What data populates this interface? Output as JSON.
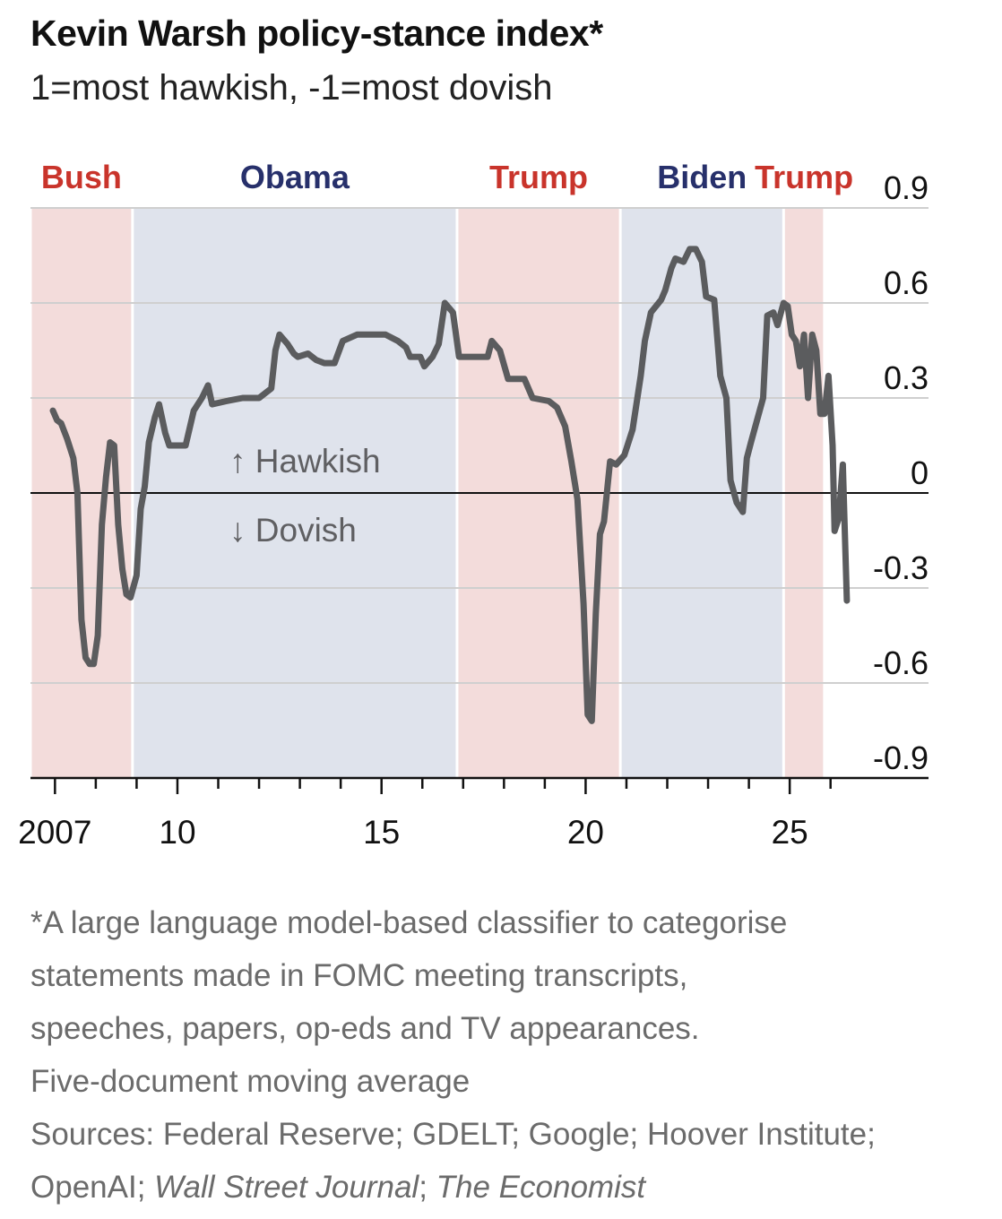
{
  "header": {
    "title": "Kevin Warsh policy-stance index*",
    "subtitle": "1=most hawkish, -1=most dovish"
  },
  "chart_data": {
    "type": "line",
    "title": "Kevin Warsh policy-stance index*",
    "subtitle": "1=most hawkish, -1=most dovish",
    "ylim": [
      -0.9,
      0.9
    ],
    "yticks": [
      0.9,
      0.6,
      0.3,
      0,
      -0.3,
      -0.6,
      -0.9
    ],
    "ytick_labels": [
      "0.9",
      "0.6",
      "0.3",
      "0",
      "-0.3",
      "-0.6",
      "-0.9"
    ],
    "xlim": [
      2006.4,
      2028.4
    ],
    "xtick_labels": [
      {
        "value": 2007,
        "label": "2007"
      },
      {
        "value": 2010,
        "label": "10"
      },
      {
        "value": 2015,
        "label": "15"
      },
      {
        "value": 2020,
        "label": "20"
      },
      {
        "value": 2025,
        "label": "25"
      }
    ],
    "minor_ticks": [
      2007,
      2008,
      2009,
      2010,
      2011,
      2012,
      2013,
      2014,
      2015,
      2016,
      2017,
      2018,
      2019,
      2020,
      2021,
      2022,
      2023,
      2024,
      2025,
      2026
    ],
    "presidencies": [
      {
        "label": "Bush",
        "party": "R",
        "start": 2006.4,
        "end": 2008.9
      },
      {
        "label": "Obama",
        "party": "D",
        "start": 2008.9,
        "end": 2016.85
      },
      {
        "label": "Trump",
        "party": "R",
        "start": 2016.85,
        "end": 2020.85
      },
      {
        "label": "Biden",
        "party": "D",
        "start": 2020.85,
        "end": 2024.85
      },
      {
        "label": "Trump",
        "party": "R",
        "start": 2024.85,
        "end": 2025.85
      }
    ],
    "annotations": {
      "hawkish": "↑ Hawkish",
      "dovish": "↓ Dovish"
    },
    "colors": {
      "republican": "#f3dcdb",
      "democrat": "#dfe3ec",
      "rep_text": "#c9342b",
      "dem_text": "#27306b",
      "line": "#5b5c5e"
    },
    "series": [
      {
        "name": "Policy-stance index",
        "points": [
          [
            2006.95,
            0.26
          ],
          [
            2007.05,
            0.23
          ],
          [
            2007.15,
            0.22
          ],
          [
            2007.3,
            0.17
          ],
          [
            2007.45,
            0.11
          ],
          [
            2007.55,
            0.0
          ],
          [
            2007.65,
            -0.4
          ],
          [
            2007.75,
            -0.52
          ],
          [
            2007.85,
            -0.54
          ],
          [
            2007.95,
            -0.54
          ],
          [
            2008.05,
            -0.45
          ],
          [
            2008.15,
            -0.1
          ],
          [
            2008.25,
            0.05
          ],
          [
            2008.35,
            0.16
          ],
          [
            2008.45,
            0.15
          ],
          [
            2008.55,
            -0.1
          ],
          [
            2008.65,
            -0.24
          ],
          [
            2008.75,
            -0.32
          ],
          [
            2008.85,
            -0.33
          ],
          [
            2009.0,
            -0.26
          ],
          [
            2009.1,
            -0.05
          ],
          [
            2009.2,
            0.02
          ],
          [
            2009.3,
            0.16
          ],
          [
            2009.45,
            0.24
          ],
          [
            2009.55,
            0.28
          ],
          [
            2009.7,
            0.19
          ],
          [
            2009.8,
            0.15
          ],
          [
            2010.0,
            0.15
          ],
          [
            2010.2,
            0.15
          ],
          [
            2010.4,
            0.26
          ],
          [
            2010.6,
            0.3
          ],
          [
            2010.75,
            0.34
          ],
          [
            2010.85,
            0.28
          ],
          [
            2011.2,
            0.29
          ],
          [
            2011.6,
            0.3
          ],
          [
            2012.0,
            0.3
          ],
          [
            2012.3,
            0.33
          ],
          [
            2012.4,
            0.45
          ],
          [
            2012.5,
            0.5
          ],
          [
            2012.7,
            0.47
          ],
          [
            2012.85,
            0.44
          ],
          [
            2012.95,
            0.43
          ],
          [
            2013.2,
            0.44
          ],
          [
            2013.4,
            0.42
          ],
          [
            2013.6,
            0.41
          ],
          [
            2013.85,
            0.41
          ],
          [
            2014.05,
            0.48
          ],
          [
            2014.4,
            0.5
          ],
          [
            2014.7,
            0.5
          ],
          [
            2015.1,
            0.5
          ],
          [
            2015.4,
            0.48
          ],
          [
            2015.6,
            0.46
          ],
          [
            2015.7,
            0.43
          ],
          [
            2015.95,
            0.43
          ],
          [
            2016.05,
            0.4
          ],
          [
            2016.25,
            0.43
          ],
          [
            2016.4,
            0.47
          ],
          [
            2016.55,
            0.6
          ],
          [
            2016.75,
            0.57
          ],
          [
            2016.9,
            0.43
          ],
          [
            2017.2,
            0.43
          ],
          [
            2017.6,
            0.43
          ],
          [
            2017.7,
            0.48
          ],
          [
            2017.9,
            0.45
          ],
          [
            2018.1,
            0.36
          ],
          [
            2018.5,
            0.36
          ],
          [
            2018.7,
            0.3
          ],
          [
            2019.1,
            0.29
          ],
          [
            2019.3,
            0.27
          ],
          [
            2019.5,
            0.21
          ],
          [
            2019.65,
            0.1
          ],
          [
            2019.8,
            -0.02
          ],
          [
            2019.95,
            -0.35
          ],
          [
            2020.05,
            -0.7
          ],
          [
            2020.15,
            -0.72
          ],
          [
            2020.25,
            -0.38
          ],
          [
            2020.35,
            -0.13
          ],
          [
            2020.45,
            -0.09
          ],
          [
            2020.6,
            0.1
          ],
          [
            2020.75,
            0.09
          ],
          [
            2020.95,
            0.12
          ],
          [
            2021.15,
            0.2
          ],
          [
            2021.35,
            0.37
          ],
          [
            2021.45,
            0.48
          ],
          [
            2021.6,
            0.57
          ],
          [
            2021.85,
            0.61
          ],
          [
            2021.95,
            0.64
          ],
          [
            2022.1,
            0.71
          ],
          [
            2022.2,
            0.74
          ],
          [
            2022.4,
            0.73
          ],
          [
            2022.55,
            0.77
          ],
          [
            2022.7,
            0.77
          ],
          [
            2022.85,
            0.73
          ],
          [
            2022.95,
            0.62
          ],
          [
            2023.15,
            0.61
          ],
          [
            2023.3,
            0.37
          ],
          [
            2023.45,
            0.3
          ],
          [
            2023.55,
            0.04
          ],
          [
            2023.7,
            -0.03
          ],
          [
            2023.85,
            -0.06
          ],
          [
            2023.95,
            0.11
          ],
          [
            2024.05,
            0.16
          ],
          [
            2024.2,
            0.23
          ],
          [
            2024.35,
            0.3
          ],
          [
            2024.45,
            0.56
          ],
          [
            2024.6,
            0.57
          ],
          [
            2024.7,
            0.53
          ],
          [
            2024.85,
            0.6
          ],
          [
            2024.95,
            0.59
          ],
          [
            2025.05,
            0.5
          ],
          [
            2025.15,
            0.48
          ],
          [
            2025.25,
            0.4
          ],
          [
            2025.35,
            0.5
          ],
          [
            2025.45,
            0.3
          ],
          [
            2025.55,
            0.5
          ],
          [
            2025.65,
            0.45
          ],
          [
            2025.75,
            0.25
          ],
          [
            2025.85,
            0.25
          ],
          [
            2025.95,
            0.37
          ],
          [
            2026.05,
            0.15
          ],
          [
            2026.1,
            -0.12
          ],
          [
            2026.2,
            -0.08
          ],
          [
            2026.3,
            0.09
          ],
          [
            2026.4,
            -0.34
          ]
        ]
      }
    ]
  },
  "footnote": {
    "line1": "*A large language model-based classifier to categorise",
    "line2": "statements made in FOMC meeting transcripts,",
    "line3": "speeches, papers, op-eds and TV appearances.",
    "line4": "Five-document moving average",
    "sources_line1": "Sources: Federal Reserve; GDELT; Google; Hoover Institute;",
    "sources_prefix": "OpenAI; ",
    "wsj": "Wall Street Journal",
    "sep": "; ",
    "economist": "The Economist"
  }
}
